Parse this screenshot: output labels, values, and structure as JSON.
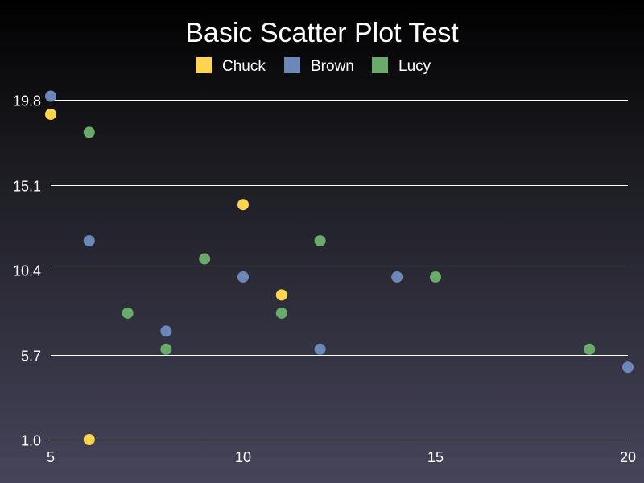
{
  "chart_data": {
    "type": "scatter",
    "title": "Basic Scatter Plot Test",
    "xlabel": "",
    "ylabel": "",
    "xlim": [
      5,
      20
    ],
    "ylim": [
      1.0,
      19.8
    ],
    "x_ticks": [
      "5",
      "10",
      "15",
      "20"
    ],
    "y_ticks": [
      "1.0",
      "5.7",
      "10.4",
      "15.1",
      "19.8"
    ],
    "grid": "horizontal",
    "legend_position": "top-center",
    "series": [
      {
        "name": "Chuck",
        "color": "#ffd54f",
        "points": [
          [
            5,
            19
          ],
          [
            6,
            1
          ],
          [
            10,
            14
          ],
          [
            11,
            9
          ]
        ]
      },
      {
        "name": "Brown",
        "color": "#6b88b8",
        "points": [
          [
            5,
            20
          ],
          [
            6,
            12
          ],
          [
            8,
            7
          ],
          [
            10,
            10
          ],
          [
            12,
            6
          ],
          [
            14,
            10
          ],
          [
            20,
            5
          ]
        ]
      },
      {
        "name": "Lucy",
        "color": "#6aaa6a",
        "points": [
          [
            6,
            18
          ],
          [
            7,
            8
          ],
          [
            8,
            6
          ],
          [
            9,
            11
          ],
          [
            11,
            8
          ],
          [
            12,
            12
          ],
          [
            15,
            10
          ],
          [
            19,
            6
          ]
        ]
      }
    ]
  }
}
